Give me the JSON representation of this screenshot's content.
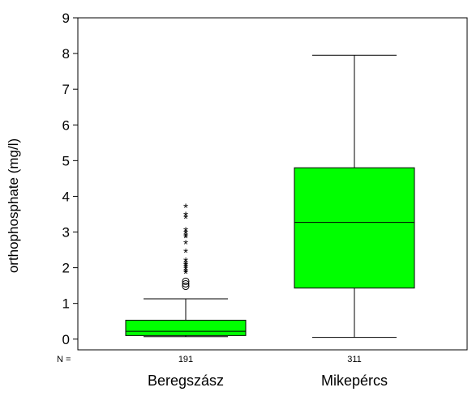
{
  "chart_data": {
    "type": "box",
    "ylabel": "orthophosphate (mg/l)",
    "ylim": [
      -0.3,
      9
    ],
    "y_ticks": [
      0,
      1,
      2,
      3,
      4,
      5,
      6,
      7,
      8,
      9
    ],
    "n_label": "N =",
    "grid": false,
    "colors": {
      "box_fill": "#00ff00",
      "line": "#000000"
    },
    "categories": [
      "Beregszász",
      "Mikepércs"
    ],
    "boxes": [
      {
        "name": "Beregszász",
        "n": "191",
        "min": 0.07,
        "q1": 0.1,
        "median": 0.22,
        "q3": 0.53,
        "max": 1.13,
        "outliers": [
          1.48,
          1.55,
          1.62
        ],
        "extremes": [
          1.85,
          1.9,
          1.97,
          2.02,
          2.07,
          2.12,
          2.2,
          2.45,
          2.68,
          2.85,
          2.9,
          2.98,
          3.05,
          3.4,
          3.48,
          3.7
        ]
      },
      {
        "name": "Mikepércs",
        "n": "311",
        "min": 0.05,
        "q1": 1.43,
        "median": 3.27,
        "q3": 4.8,
        "max": 7.95,
        "outliers": [],
        "extremes": []
      }
    ]
  }
}
